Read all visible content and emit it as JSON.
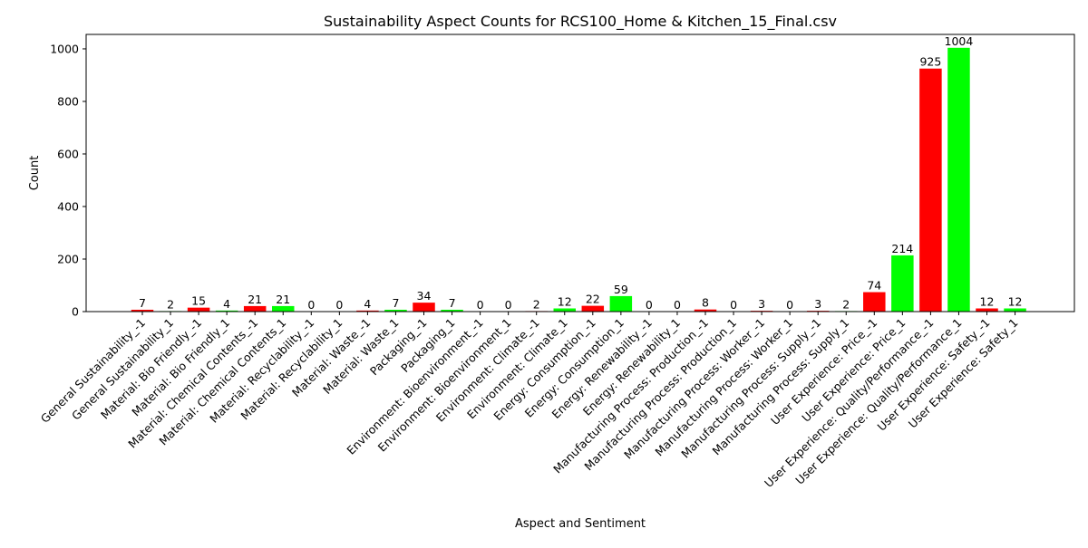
{
  "chart_data": {
    "type": "bar",
    "title": "Sustainability Aspect Counts for RCS100_Home & Kitchen_15_Final.csv",
    "xlabel": "Aspect and Sentiment",
    "ylabel": "Count",
    "ylim": [
      0,
      1055
    ],
    "yticks": [
      0,
      200,
      400,
      600,
      800,
      1000
    ],
    "grid": false,
    "legend": "none",
    "colors": {
      "negative": "#ff0000",
      "positive": "#00ff00"
    },
    "categories": [
      "General Sustainability_-1",
      "General Sustainability_1",
      "Material: Bio Friendly_-1",
      "Material: Bio Friendly_1",
      "Material: Chemical Contents_-1",
      "Material: Chemical Contents_1",
      "Material: Recyclability_-1",
      "Material: Recyclability_1",
      "Material: Waste_-1",
      "Material: Waste_1",
      "Packaging_-1",
      "Packaging_1",
      "Environment: Bioenvironment_-1",
      "Environment: Bioenvironment_1",
      "Environment: Climate_-1",
      "Environment: Climate_1",
      "Energy: Consumption_-1",
      "Energy: Consumption_1",
      "Energy: Renewability_-1",
      "Energy: Renewability_1",
      "Manufacturing Process: Production_-1",
      "Manufacturing Process: Production_1",
      "Manufacturing Process: Worker_-1",
      "Manufacturing Process: Worker_1",
      "Manufacturing Process: Supply_-1",
      "Manufacturing Process: Supply_1",
      "User Experience: Price_-1",
      "User Experience: Price_1",
      "User Experience: Quality/Performance_-1",
      "User Experience: Quality/Performance_1",
      "User Experience: Safety_-1",
      "User Experience: Safety_1"
    ],
    "values": [
      7,
      2,
      15,
      4,
      21,
      21,
      0,
      0,
      4,
      7,
      34,
      7,
      0,
      0,
      2,
      12,
      22,
      59,
      0,
      0,
      8,
      0,
      3,
      0,
      3,
      2,
      74,
      214,
      925,
      1004,
      12,
      12
    ],
    "bar_colors": [
      "negative",
      "positive",
      "negative",
      "positive",
      "negative",
      "positive",
      "negative",
      "positive",
      "negative",
      "positive",
      "negative",
      "positive",
      "negative",
      "positive",
      "negative",
      "positive",
      "negative",
      "positive",
      "negative",
      "positive",
      "negative",
      "positive",
      "negative",
      "positive",
      "negative",
      "positive",
      "negative",
      "positive",
      "negative",
      "positive",
      "negative",
      "positive"
    ]
  }
}
